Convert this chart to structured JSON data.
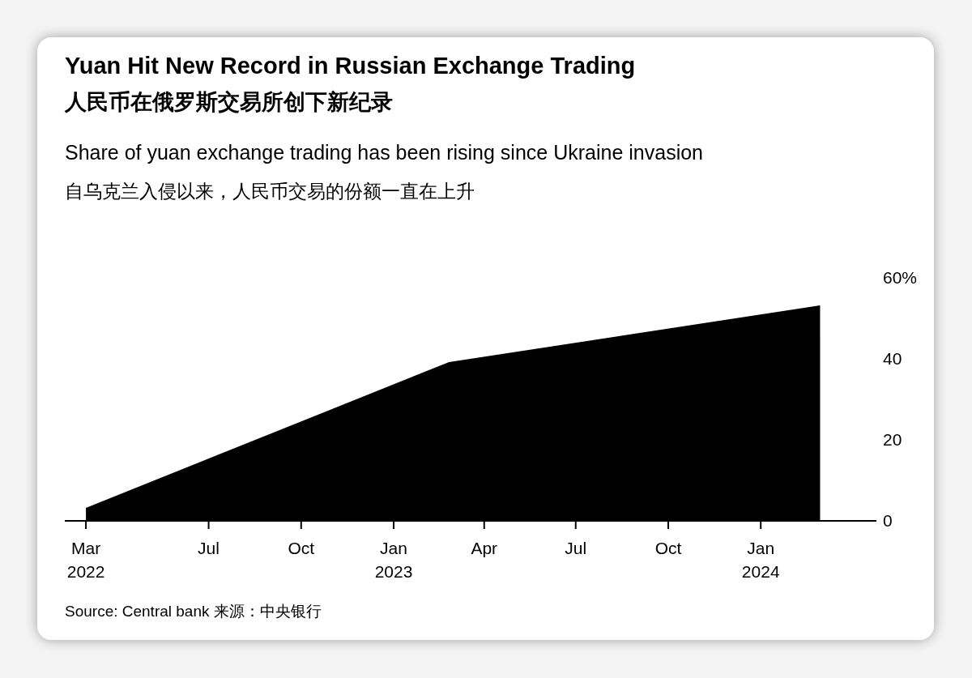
{
  "chart_data": {
    "type": "area",
    "title": "Yuan Hit New Record in Russian Exchange Trading\n人民币在俄罗斯交易所创下新纪录",
    "subtitle": "Share of yuan exchange trading has been rising since Ukraine invasion\n自乌克兰入侵以来，人民币交易的份额一直在上升",
    "x": [
      "2022-03-01",
      "2023-02-25",
      "2024-02-29"
    ],
    "series": [
      {
        "color": "#000000",
        "values": [
          3.2,
          39.2,
          53.2
        ]
      }
    ],
    "xlim": [
      "2022-02-08",
      "2024-04-25"
    ],
    "xticks": [
      {
        "value": "2022-03-01",
        "label": "Mar\n2022"
      },
      {
        "value": "2022-07-01",
        "label": "Jul"
      },
      {
        "value": "2022-10-01",
        "label": "Oct"
      },
      {
        "value": "2023-01-01",
        "label": "Jan\n2023"
      },
      {
        "value": "2023-04-01",
        "label": "Apr"
      },
      {
        "value": "2023-07-01",
        "label": "Jul"
      },
      {
        "value": "2023-10-01",
        "label": "Oct"
      },
      {
        "value": "2024-01-01",
        "label": "Jan\n2024"
      }
    ],
    "ylim": [
      0,
      60
    ],
    "yticks": [
      0,
      20,
      40,
      {
        "value": 60,
        "label": "60%"
      }
    ],
    "grid": false,
    "annotations": [
      "Source: Central bank 来源：中央银行"
    ]
  }
}
